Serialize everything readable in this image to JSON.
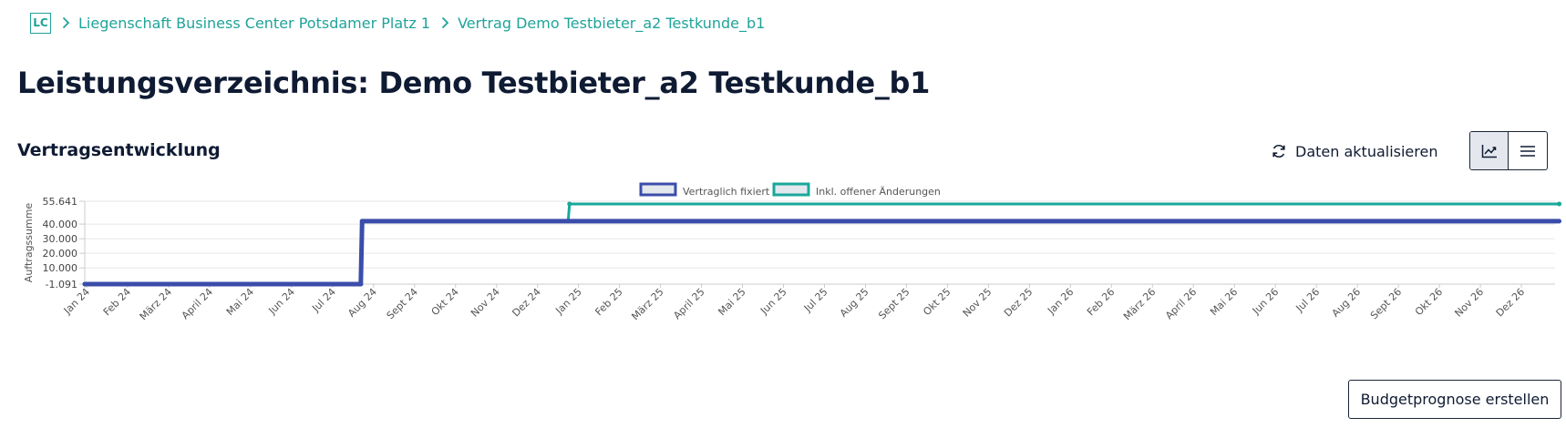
{
  "breadcrumb": {
    "logo": "LC",
    "items": [
      "Liegenschaft Business Center Potsdamer Platz 1",
      "Vertrag Demo Testbieter_a2 Testkunde_b1"
    ]
  },
  "page_title": "Leistungsverzeichnis: Demo Testbieter_a2 Testkunde_b1",
  "section_title": "Vertragsentwicklung",
  "actions": {
    "refresh_label": "Daten aktualisieren",
    "view_toggle": [
      "chart-view-icon",
      "list-view-icon"
    ],
    "budget_label": "Budgetprognose erstellen"
  },
  "colors": {
    "accent": "#1fa39a",
    "series_fixed": "#3b4daa",
    "series_open": "#18a89a"
  },
  "chart_data": {
    "type": "line",
    "ylabel": "Auftragssumme",
    "ytick_labels": [
      "55.641",
      "40.000",
      "30.000",
      "20.000",
      "10.000",
      "-1.091"
    ],
    "yticks": [
      55641,
      40000,
      30000,
      20000,
      10000,
      -1091
    ],
    "ylim": [
      -1091,
      55641
    ],
    "grid": true,
    "legend_placement": "top-center",
    "categories": [
      "Jan 24",
      "Feb 24",
      "März 24",
      "April 24",
      "Mai 24",
      "Jun 24",
      "Jul 24",
      "Aug 24",
      "Sept 24",
      "Okt 24",
      "Nov 24",
      "Dez 24",
      "Jan 25",
      "Feb 25",
      "März 25",
      "April 25",
      "Mai 25",
      "Jun 25",
      "Jul 25",
      "Aug 25",
      "Sept 25",
      "Okt 25",
      "Nov 25",
      "Dez 25",
      "Jan 26",
      "Feb 26",
      "März 26",
      "April 26",
      "Mai 26",
      "Jun 26",
      "Jul 26",
      "Aug 26",
      "Sept 26",
      "Okt 26",
      "Nov 26",
      "Dez 26"
    ],
    "series": [
      {
        "name": "Vertraglich fixiert",
        "points": [
          {
            "x": "2024-01-01",
            "y": -1091
          },
          {
            "x": "2024-07-24",
            "y": -1091
          },
          {
            "x": "2024-07-25",
            "y": 42000
          },
          {
            "x": "2026-12-31",
            "y": 42000
          }
        ]
      },
      {
        "name": "Inkl. offener Änderungen",
        "points": [
          {
            "x": "2024-01-01",
            "y": -1091
          },
          {
            "x": "2024-07-24",
            "y": -1091
          },
          {
            "x": "2024-07-25",
            "y": 42000
          },
          {
            "x": "2024-12-25",
            "y": 42000
          },
          {
            "x": "2024-12-26",
            "y": 53800
          },
          {
            "x": "2026-12-31",
            "y": 53800
          }
        ]
      }
    ]
  }
}
